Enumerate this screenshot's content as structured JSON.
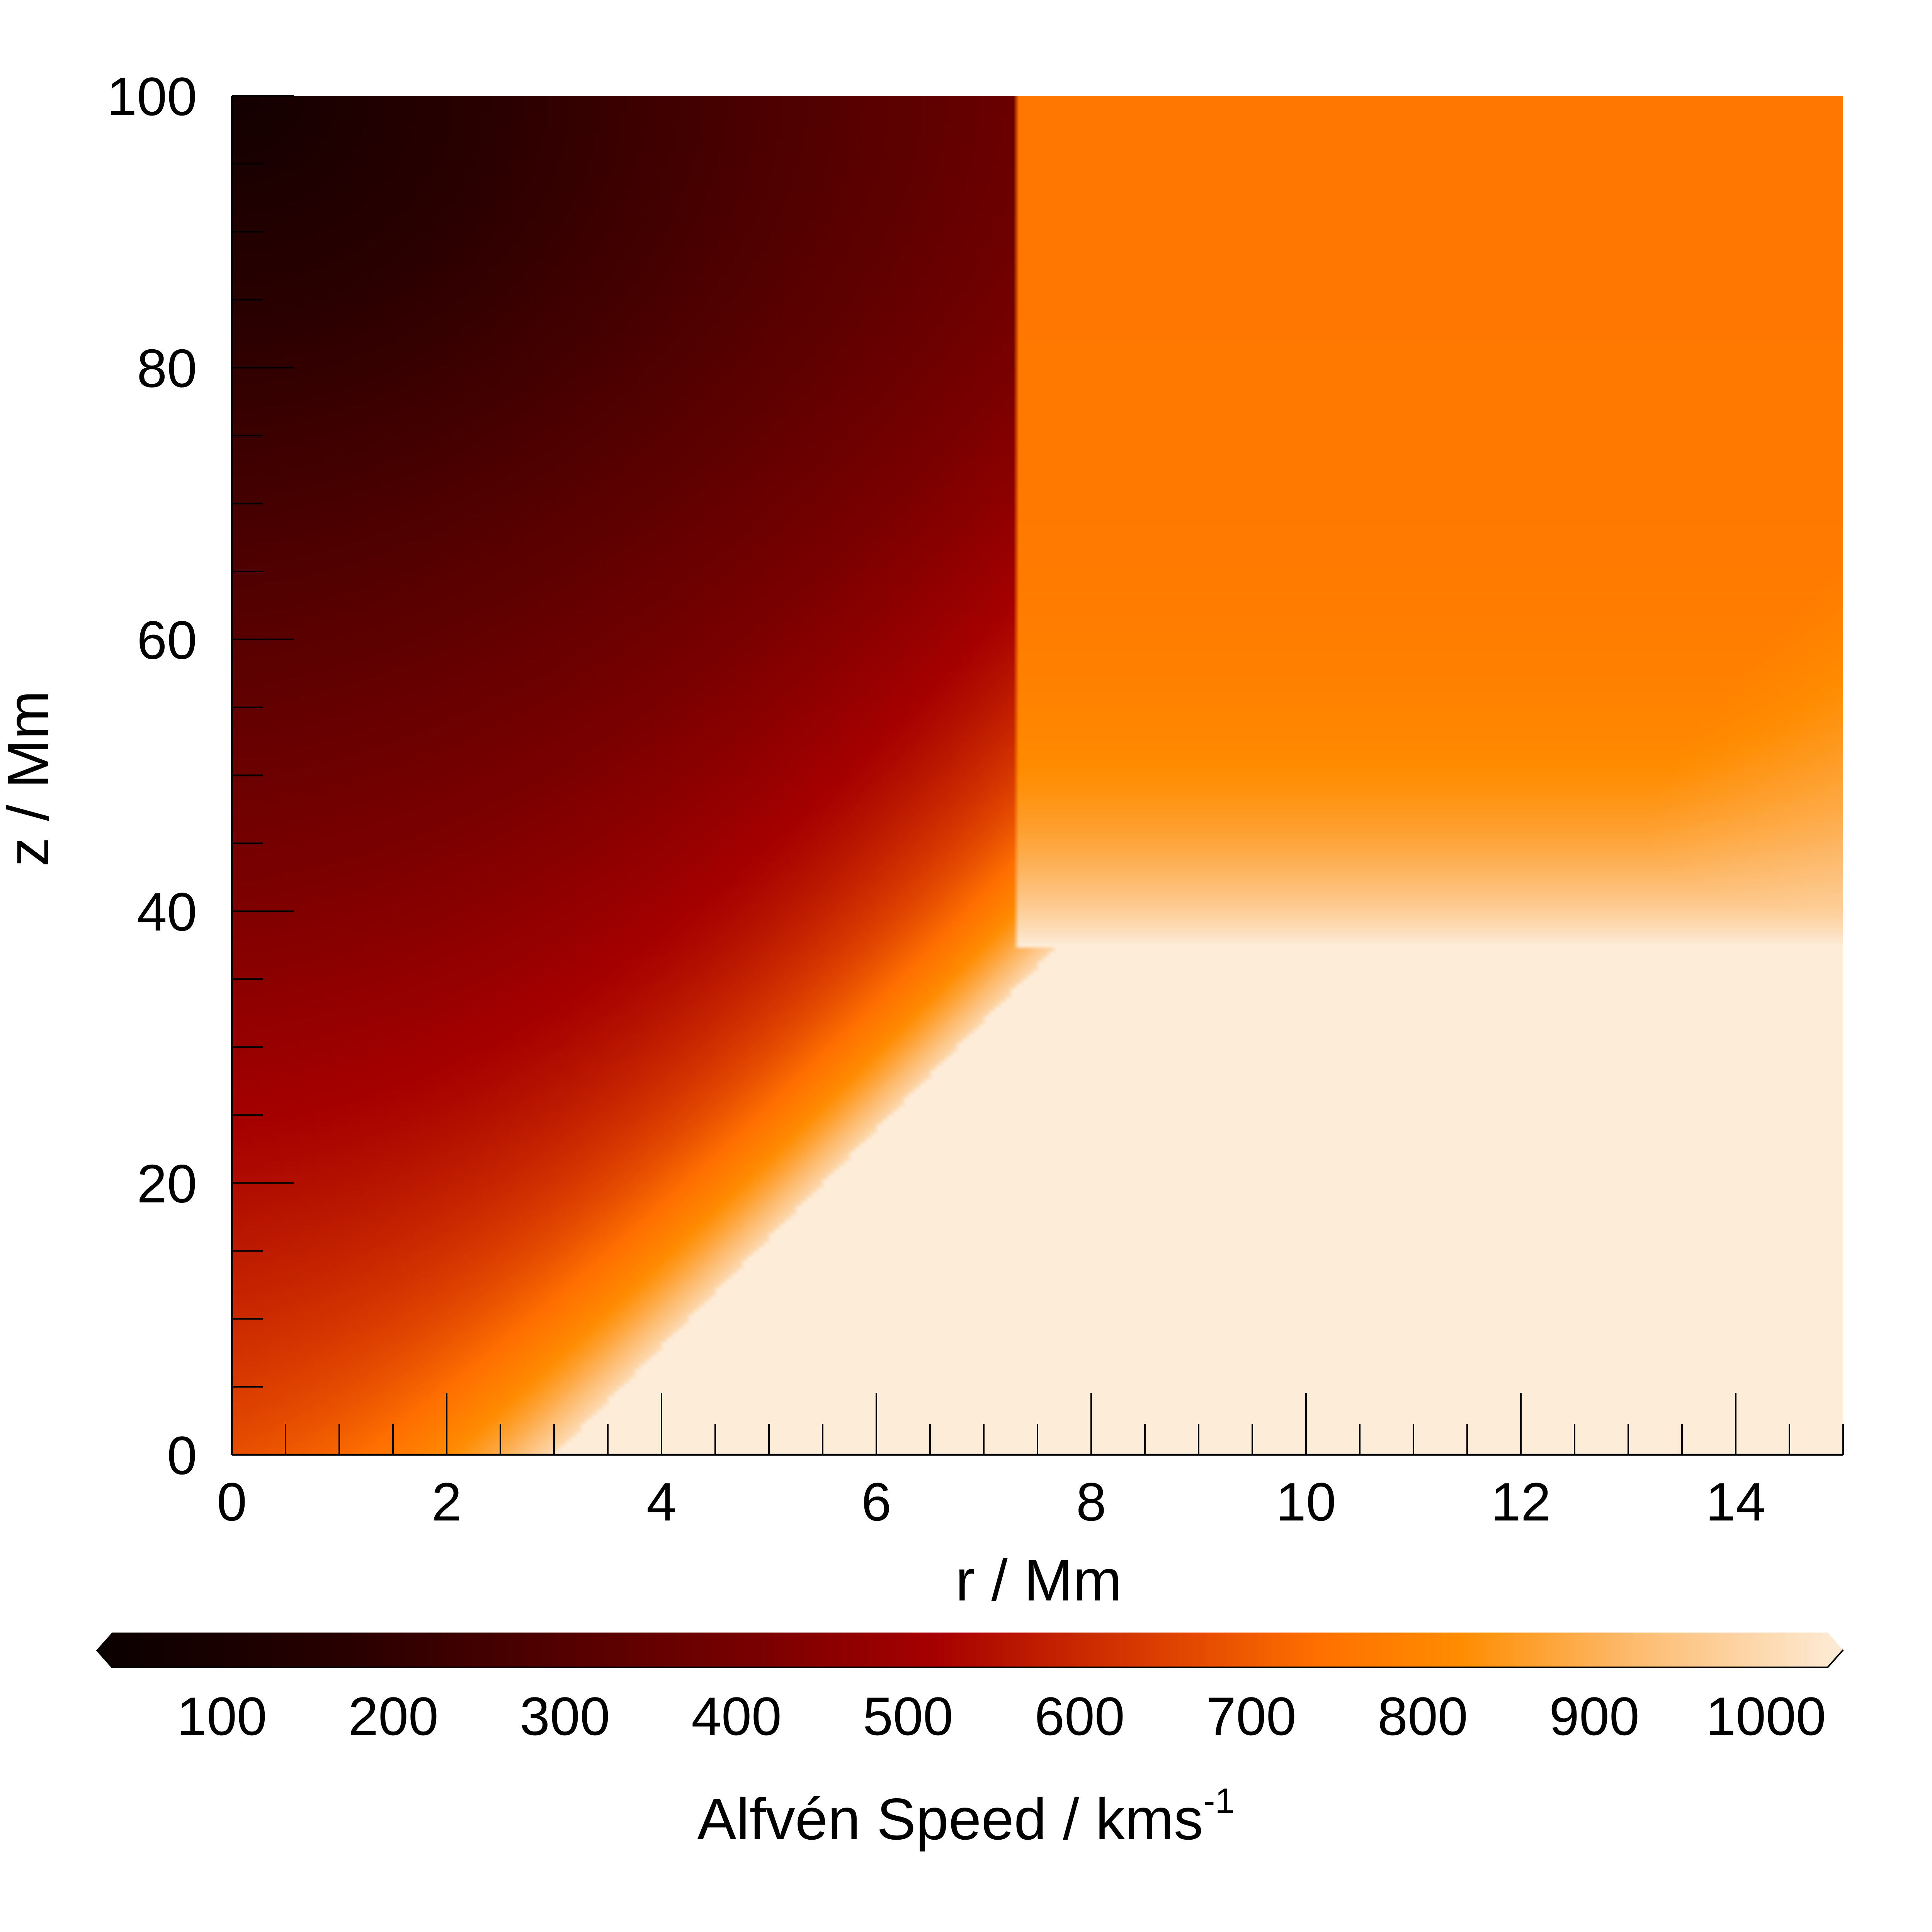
{
  "chart_data": {
    "type": "heatmap",
    "title": "",
    "xlabel": "r / Mm",
    "ylabel": "z / Mm",
    "xlim": [
      0,
      15
    ],
    "ylim": [
      0,
      100
    ],
    "x_ticks": [
      "0",
      "2",
      "4",
      "6",
      "8",
      "10",
      "12",
      "14"
    ],
    "y_ticks": [
      "0",
      "20",
      "40",
      "60",
      "80",
      "100"
    ],
    "x_tick_values": [
      0,
      2,
      4,
      6,
      8,
      10,
      12,
      14
    ],
    "y_tick_values": [
      0,
      20,
      40,
      60,
      80,
      100
    ],
    "x_minor_step": 0.5,
    "y_minor_step": 5,
    "colorbar": {
      "label_main": "Alfvén Speed / kms",
      "label_sup": "-1",
      "orientation": "horizontal",
      "placement": "bottom",
      "extend": "both",
      "range": [
        0,
        1000
      ],
      "ticks": [
        "100",
        "200",
        "300",
        "400",
        "500",
        "600",
        "700",
        "800",
        "900",
        "1000"
      ],
      "tick_values": [
        100,
        200,
        300,
        400,
        500,
        600,
        700,
        800,
        900,
        1000
      ],
      "colormap": [
        {
          "value": 0,
          "color": "#0a0000"
        },
        {
          "value": 150,
          "color": "#2a0000"
        },
        {
          "value": 250,
          "color": "#4d0000"
        },
        {
          "value": 380,
          "color": "#7a0000"
        },
        {
          "value": 480,
          "color": "#a60000"
        },
        {
          "value": 600,
          "color": "#d93a00"
        },
        {
          "value": 700,
          "color": "#ff7000"
        },
        {
          "value": 780,
          "color": "#ff8c00"
        },
        {
          "value": 880,
          "color": "#fdbb6e"
        },
        {
          "value": 1000,
          "color": "#fdecd8"
        }
      ]
    },
    "saturated_region": "lower-right"
  }
}
